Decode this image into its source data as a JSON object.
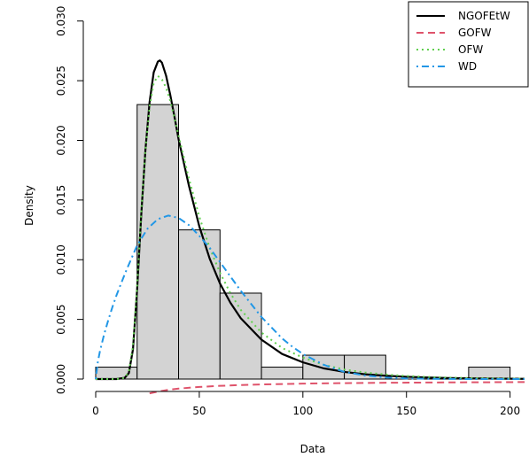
{
  "chart_data": {
    "type": "histogram-with-density-lines",
    "xlabel": "Data",
    "ylabel": "Density",
    "xlim": [
      0,
      207
    ],
    "ylim": [
      0,
      0.0305
    ],
    "x_ticks": [
      0,
      50,
      100,
      150,
      200
    ],
    "x_tick_labels": [
      "0",
      "50",
      "100",
      "150",
      "200"
    ],
    "y_ticks": [
      0,
      0.005,
      0.01,
      0.015,
      0.02,
      0.025,
      0.03
    ],
    "y_tick_labels": [
      "0.000",
      "0.005",
      "0.010",
      "0.015",
      "0.020",
      "0.025",
      "0.030"
    ],
    "grid": false,
    "legend_position": "top-right",
    "histogram": {
      "color": "#d3d3d3",
      "bins": [
        {
          "x0": 0,
          "x1": 20,
          "density": 0.001
        },
        {
          "x0": 20,
          "x1": 40,
          "density": 0.023
        },
        {
          "x0": 40,
          "x1": 60,
          "density": 0.0125
        },
        {
          "x0": 60,
          "x1": 80,
          "density": 0.0072
        },
        {
          "x0": 80,
          "x1": 100,
          "density": 0.001
        },
        {
          "x0": 100,
          "x1": 120,
          "density": 0.002
        },
        {
          "x0": 120,
          "x1": 140,
          "density": 0.002
        },
        {
          "x0": 140,
          "x1": 160,
          "density": 0
        },
        {
          "x0": 160,
          "x1": 180,
          "density": 0
        },
        {
          "x0": 180,
          "x1": 200,
          "density": 0.001
        }
      ]
    },
    "series": [
      {
        "name": "NGOFEtW",
        "color": "#000000",
        "dash": "solid",
        "x": [
          0,
          10,
          14,
          16,
          18,
          20,
          22,
          24,
          26,
          28,
          30,
          31,
          32,
          34,
          36,
          38,
          40,
          45,
          50,
          55,
          60,
          65,
          70,
          80,
          90,
          100,
          110,
          120,
          130,
          140,
          150,
          160,
          170,
          180,
          190,
          200,
          207
        ],
        "y": [
          0,
          0,
          0.0001,
          0.0005,
          0.0025,
          0.0075,
          0.0138,
          0.0192,
          0.0232,
          0.0257,
          0.0266,
          0.0267,
          0.0265,
          0.0254,
          0.0238,
          0.022,
          0.0201,
          0.0162,
          0.0128,
          0.0101,
          0.008,
          0.0064,
          0.0051,
          0.0033,
          0.0021,
          0.0014,
          0.0009,
          0.0006,
          0.0004,
          0.00028,
          0.00019,
          0.00013,
          9e-05,
          6e-05,
          4e-05,
          3e-05,
          2e-05
        ]
      },
      {
        "name": "GOFW",
        "color": "#df536b",
        "dash": "dashed",
        "x": [
          26,
          30,
          35,
          40,
          50,
          60,
          70,
          80,
          100,
          120,
          140,
          160,
          180,
          200,
          207
        ],
        "y": [
          -0.0012,
          -0.00105,
          -0.0009,
          -0.0008,
          -0.00066,
          -0.00057,
          -0.0005,
          -0.00045,
          -0.00038,
          -0.00034,
          -0.00031,
          -0.00029,
          -0.00027,
          -0.00026,
          -0.00025
        ]
      },
      {
        "name": "OFW",
        "color": "#61d04f",
        "dash": "dotted",
        "x": [
          0,
          10,
          14,
          16,
          18,
          20,
          22,
          24,
          26,
          28,
          30,
          32,
          34,
          36,
          38,
          40,
          45,
          50,
          55,
          60,
          65,
          70,
          80,
          90,
          100,
          110,
          120,
          130,
          140,
          150,
          160,
          170,
          180,
          190,
          200,
          207
        ],
        "y": [
          0,
          0,
          0.0001,
          0.0006,
          0.0028,
          0.0078,
          0.014,
          0.0192,
          0.0228,
          0.0248,
          0.0254,
          0.0251,
          0.0244,
          0.0233,
          0.0219,
          0.0204,
          0.0168,
          0.0136,
          0.011,
          0.0089,
          0.0072,
          0.0058,
          0.0039,
          0.0026,
          0.0018,
          0.0012,
          0.0008,
          0.00055,
          0.00038,
          0.00026,
          0.00018,
          0.00012,
          9e-05,
          6e-05,
          4e-05,
          3e-05
        ]
      },
      {
        "name": "WD",
        "color": "#2297e6",
        "dash": "dotdash",
        "x": [
          0,
          1,
          2,
          4,
          6,
          8,
          10,
          12,
          15,
          20,
          25,
          30,
          35,
          40,
          45,
          50,
          55,
          60,
          65,
          70,
          75,
          80,
          85,
          90,
          95,
          100,
          110,
          120,
          130,
          140,
          150,
          160,
          180,
          200,
          207
        ],
        "y": [
          0,
          0.0014,
          0.0023,
          0.0037,
          0.0049,
          0.006,
          0.007,
          0.0079,
          0.0092,
          0.0112,
          0.0126,
          0.0134,
          0.0137,
          0.0135,
          0.0129,
          0.012,
          0.011,
          0.0098,
          0.0086,
          0.0074,
          0.0063,
          0.0052,
          0.0043,
          0.0034,
          0.0027,
          0.0021,
          0.0012,
          0.0006,
          0.0003,
          0.00013,
          5e-05,
          2e-05,
          0,
          0,
          0
        ]
      }
    ]
  }
}
